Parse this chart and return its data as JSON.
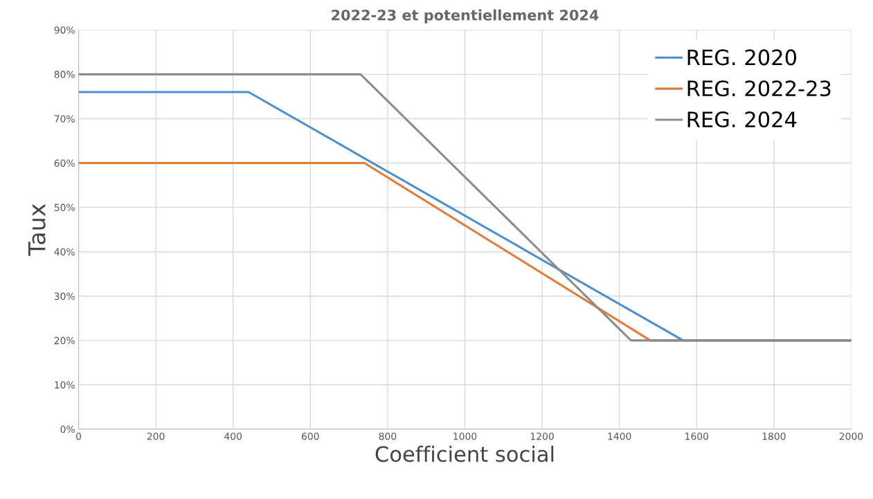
{
  "chart_data": {
    "type": "line",
    "title": "2022-23 et potentiellement 2024",
    "xlabel": "Coefficient social",
    "ylabel": "Taux",
    "series": [
      {
        "name": "REG. 2020",
        "color": "#4a8fd0",
        "x": [
          0,
          440,
          1565,
          2000
        ],
        "values": [
          76,
          76,
          20,
          20
        ]
      },
      {
        "name": "REG. 2022-23",
        "color": "#e07b39",
        "x": [
          0,
          740,
          1480,
          2000
        ],
        "values": [
          60,
          60,
          20,
          20
        ]
      },
      {
        "name": "REG. 2024",
        "color": "#8c8c8c",
        "x": [
          0,
          730,
          1430,
          2000
        ],
        "values": [
          80,
          80,
          20,
          20
        ]
      }
    ],
    "xlim": [
      0,
      2000
    ],
    "xticks": [
      0,
      200,
      400,
      600,
      800,
      1000,
      1200,
      1400,
      1600,
      1800,
      2000
    ],
    "ylim": [
      0,
      90
    ],
    "yticks": [
      {
        "value": 0,
        "label": "0%"
      },
      {
        "value": 10,
        "label": "10%"
      },
      {
        "value": 20,
        "label": "20%"
      },
      {
        "value": 30,
        "label": "30%"
      },
      {
        "value": 40,
        "label": "40%"
      },
      {
        "value": 50,
        "label": "50%"
      },
      {
        "value": 60,
        "label": "60%"
      },
      {
        "value": 70,
        "label": "70%"
      },
      {
        "value": 80,
        "label": "80%"
      },
      {
        "value": 90,
        "label": "90%"
      }
    ],
    "grid": true,
    "legend": "top right",
    "marker": "none",
    "line_style": "solid"
  }
}
